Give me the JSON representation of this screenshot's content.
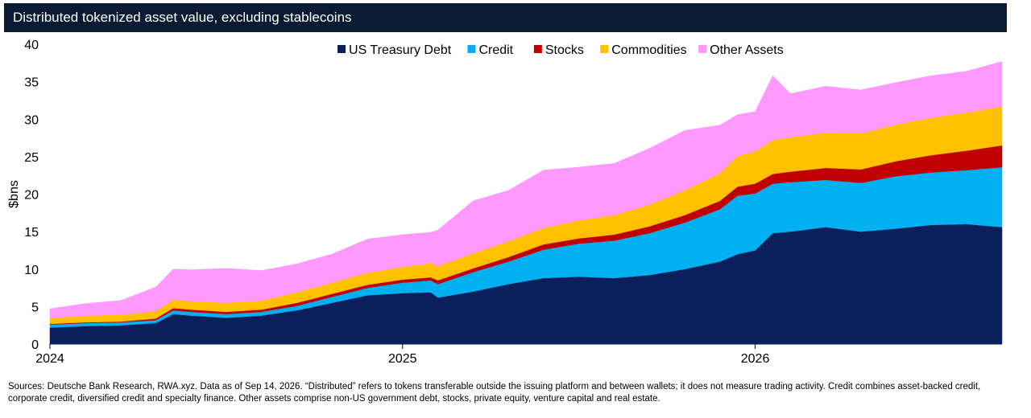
{
  "title": "Distributed tokenized asset value, excluding stablecoins",
  "sources": "Sources: Deutsche Bank Research, RWA.xyz. Data as of Sep 14, 2026. “Distributed” refers to tokens transferable outside the issuing platform and between wallets; it does not measure trading activity. Credit combines asset-backed credit, corporate credit, diversified credit and specialty finance. Other assets comprise non-US government debt, stocks, private equity, venture capital and real estate.",
  "chart_data": {
    "type": "area",
    "stacked": true,
    "ylabel": "$bns",
    "ylim": [
      0,
      40
    ],
    "yticks": [
      "0",
      "5",
      "10",
      "15",
      "20",
      "25",
      "30",
      "35",
      "40"
    ],
    "xlim": [
      2024.0,
      2026.7
    ],
    "xticks": [
      {
        "label": "2024",
        "value": 2024.0
      },
      {
        "label": "2025",
        "value": 2025.0
      },
      {
        "label": "2026",
        "value": 2026.0
      }
    ],
    "legend_position": "top-center",
    "x": [
      2024.0,
      2024.1,
      2024.2,
      2024.3,
      2024.35,
      2024.4,
      2024.5,
      2024.6,
      2024.7,
      2024.8,
      2024.9,
      2025.0,
      2025.08,
      2025.1,
      2025.2,
      2025.3,
      2025.4,
      2025.5,
      2025.6,
      2025.7,
      2025.8,
      2025.9,
      2025.95,
      2026.0,
      2026.05,
      2026.1,
      2026.2,
      2026.3,
      2026.4,
      2026.5,
      2026.6,
      2026.7
    ],
    "series": [
      {
        "name": "US Treasury Debt",
        "color": "#0a1f5c",
        "values": [
          2.2,
          2.4,
          2.5,
          2.8,
          4.0,
          3.8,
          3.5,
          3.8,
          4.5,
          5.5,
          6.5,
          6.8,
          6.9,
          6.2,
          7.0,
          8.0,
          8.8,
          9.0,
          8.8,
          9.2,
          10.0,
          11.0,
          12.0,
          12.5,
          14.8,
          15.0,
          15.6,
          15.0,
          15.4,
          15.9,
          16.0,
          15.6
        ]
      },
      {
        "name": "Credit",
        "color": "#00b0f0",
        "values": [
          0.4,
          0.4,
          0.4,
          0.4,
          0.5,
          0.5,
          0.5,
          0.5,
          0.6,
          0.8,
          1.0,
          1.4,
          1.6,
          1.8,
          2.6,
          3.0,
          3.8,
          4.4,
          5.0,
          5.6,
          6.2,
          7.0,
          7.8,
          7.6,
          6.6,
          6.6,
          6.3,
          6.5,
          7.0,
          7.0,
          7.2,
          8.0
        ]
      },
      {
        "name": "Stocks",
        "color": "#c00000",
        "values": [
          0.1,
          0.1,
          0.1,
          0.2,
          0.3,
          0.3,
          0.3,
          0.3,
          0.4,
          0.4,
          0.4,
          0.4,
          0.4,
          0.5,
          0.5,
          0.6,
          0.7,
          0.7,
          0.8,
          0.9,
          1.0,
          1.1,
          1.2,
          1.3,
          1.3,
          1.4,
          1.6,
          1.8,
          2.0,
          2.3,
          2.6,
          2.9
        ]
      },
      {
        "name": "Commodities",
        "color": "#ffc000",
        "values": [
          0.8,
          0.9,
          0.9,
          1.0,
          1.1,
          1.1,
          1.2,
          1.2,
          1.4,
          1.5,
          1.6,
          1.7,
          1.9,
          1.9,
          2.0,
          2.1,
          2.2,
          2.4,
          2.6,
          2.9,
          3.3,
          3.7,
          4.1,
          4.3,
          4.5,
          4.6,
          4.7,
          4.8,
          4.9,
          5.0,
          5.1,
          5.2
        ]
      },
      {
        "name": "Other Assets",
        "color": "#ff99ff",
        "values": [
          1.2,
          1.6,
          1.9,
          3.2,
          4.1,
          4.2,
          4.6,
          4.0,
          3.8,
          3.8,
          4.5,
          4.3,
          4.1,
          4.8,
          7.0,
          6.8,
          7.7,
          7.1,
          6.9,
          7.5,
          8.0,
          6.4,
          5.5,
          5.3,
          8.6,
          5.8,
          6.2,
          5.8,
          5.6,
          5.6,
          5.5,
          6.0
        ]
      }
    ]
  }
}
